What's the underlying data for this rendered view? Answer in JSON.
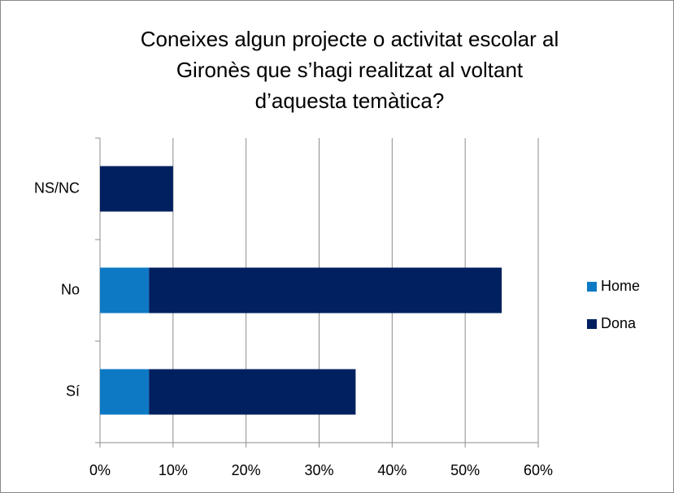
{
  "chart_data": {
    "type": "stacked_bar_horizontal",
    "title": [
      "Coneixes algun projecte o activitat escolar al",
      "Gironès que s’hagi realitzat al voltant",
      "d’aquesta temàtica?"
    ],
    "categories": [
      "Sí",
      "No",
      "NS/NC"
    ],
    "series": [
      {
        "name": "Home",
        "color": "#0d79c4",
        "values": [
          6.7,
          6.7,
          0
        ]
      },
      {
        "name": "Dona",
        "color": "#002060",
        "values": [
          28.3,
          48.3,
          10
        ]
      }
    ],
    "xlim": [
      0,
      60
    ],
    "xticks": [
      {
        "value": 0,
        "label": "0%"
      },
      {
        "value": 10,
        "label": "10%"
      },
      {
        "value": 20,
        "label": "20%"
      },
      {
        "value": 30,
        "label": "30%"
      },
      {
        "value": 40,
        "label": "40%"
      },
      {
        "value": 50,
        "label": "50%"
      },
      {
        "value": 60,
        "label": "60%"
      }
    ],
    "grid": true,
    "legend": "right"
  }
}
